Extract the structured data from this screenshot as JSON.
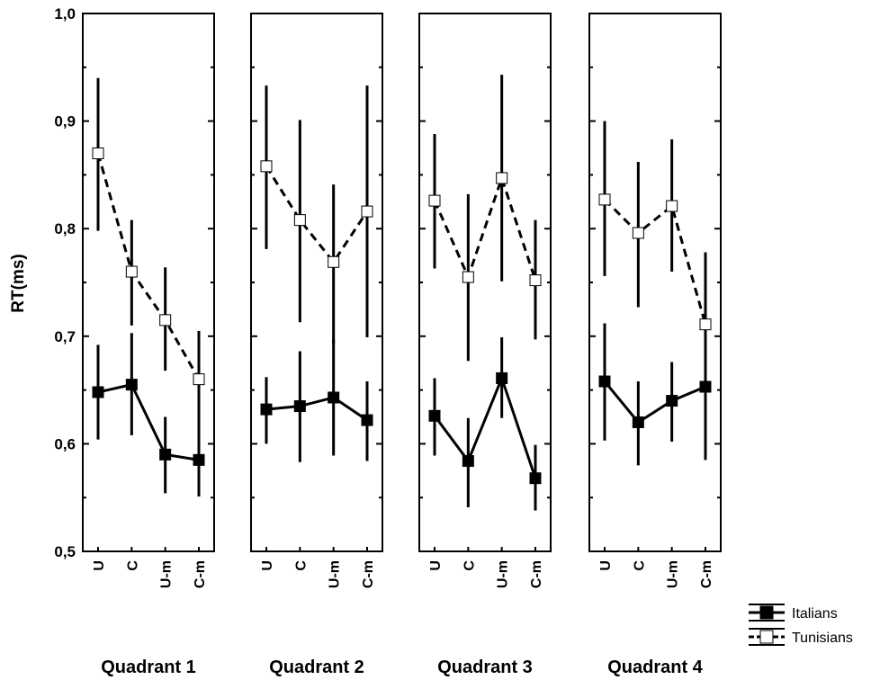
{
  "chart_data": {
    "type": "line",
    "ylabel": "RT(ms)",
    "ylim": [
      0.5,
      1.0
    ],
    "yticks": [
      "0,5",
      "0,6",
      "0,7",
      "0,8",
      "0,9",
      "1,0"
    ],
    "categories": [
      "U",
      "C",
      "U-m",
      "C-m"
    ],
    "panels": [
      {
        "title": "Quadrant 1",
        "series": [
          {
            "name": "Italians",
            "values": [
              0.648,
              0.655,
              0.59,
              0.585
            ],
            "err_low": [
              0.604,
              0.608,
              0.554,
              0.551
            ],
            "err_high": [
              0.692,
              0.703,
              0.625,
              0.617
            ]
          },
          {
            "name": "Tunisians",
            "values": [
              0.87,
              0.76,
              0.715,
              0.66
            ],
            "err_low": [
              0.798,
              0.71,
              0.668,
              0.615
            ],
            "err_high": [
              0.94,
              0.808,
              0.764,
              0.705
            ]
          }
        ]
      },
      {
        "title": "Quadrant 2",
        "series": [
          {
            "name": "Italians",
            "values": [
              0.632,
              0.635,
              0.643,
              0.622
            ],
            "err_low": [
              0.6,
              0.583,
              0.589,
              0.584
            ],
            "err_high": [
              0.662,
              0.686,
              0.697,
              0.658
            ]
          },
          {
            "name": "Tunisians",
            "values": [
              0.858,
              0.808,
              0.769,
              0.816
            ],
            "err_low": [
              0.781,
              0.713,
              0.693,
              0.699
            ],
            "err_high": [
              0.933,
              0.901,
              0.841,
              0.933
            ]
          }
        ]
      },
      {
        "title": "Quadrant 3",
        "series": [
          {
            "name": "Italians",
            "values": [
              0.626,
              0.584,
              0.661,
              0.568
            ],
            "err_low": [
              0.589,
              0.541,
              0.624,
              0.538
            ],
            "err_high": [
              0.661,
              0.624,
              0.699,
              0.599
            ]
          },
          {
            "name": "Tunisians",
            "values": [
              0.826,
              0.755,
              0.847,
              0.752
            ],
            "err_low": [
              0.763,
              0.677,
              0.751,
              0.697
            ],
            "err_high": [
              0.888,
              0.832,
              0.943,
              0.808
            ]
          }
        ]
      },
      {
        "title": "Quadrant 4",
        "series": [
          {
            "name": "Italians",
            "values": [
              0.658,
              0.62,
              0.64,
              0.653
            ],
            "err_low": [
              0.603,
              0.58,
              0.602,
              0.585
            ],
            "err_high": [
              0.712,
              0.658,
              0.676,
              0.721
            ]
          },
          {
            "name": "Tunisians",
            "values": [
              0.827,
              0.796,
              0.821,
              0.711
            ],
            "err_low": [
              0.756,
              0.727,
              0.76,
              0.64
            ],
            "err_high": [
              0.9,
              0.862,
              0.883,
              0.778
            ]
          }
        ]
      }
    ],
    "legend": {
      "position": "bottom-right",
      "items": [
        {
          "name": "Italians",
          "marker": "filled-square",
          "line": "solid"
        },
        {
          "name": "Tunisians",
          "marker": "open-square",
          "line": "dashed"
        }
      ]
    },
    "colors": {
      "line": "#000000",
      "marker_fill_filled": "#000000",
      "marker_fill_open": "#ffffff",
      "background": "#ffffff"
    }
  }
}
